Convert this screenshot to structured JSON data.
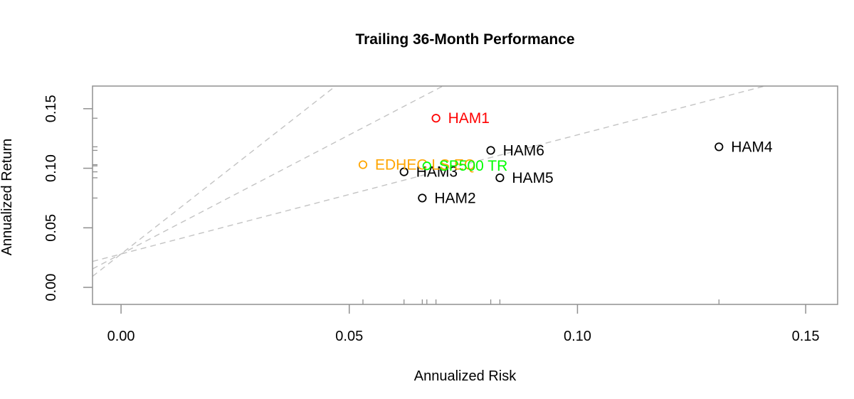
{
  "title": "Trailing 36-Month Performance",
  "x_axis_label": "Annualized Risk",
  "y_axis_label": "Annualized Return",
  "chart_data": {
    "type": "scatter",
    "title": "Trailing 36-Month Performance",
    "xlabel": "Annualized Risk",
    "ylabel": "Annualized Return",
    "xlim": [
      -0.00625,
      0.157
    ],
    "ylim": [
      -0.0143,
      0.169
    ],
    "x_ticks": [
      0,
      0.05,
      0.1,
      0.15
    ],
    "x_tick_labels": [
      "0.00",
      "0.05",
      "0.10",
      "0.15"
    ],
    "y_ticks": [
      0,
      0.05,
      0.1,
      0.15
    ],
    "y_tick_labels": [
      "0.00",
      "0.05",
      "0.10",
      "0.15"
    ],
    "grid": false,
    "legend": "none",
    "points": [
      {
        "name": "HAM1",
        "risk": 0.069,
        "return": 0.142,
        "color": "#ff0000"
      },
      {
        "name": "HAM2",
        "risk": 0.066,
        "return": 0.075,
        "color": "#000000"
      },
      {
        "name": "HAM3",
        "risk": 0.062,
        "return": 0.097,
        "color": "#000000"
      },
      {
        "name": "HAM4",
        "risk": 0.131,
        "return": 0.118,
        "color": "#000000"
      },
      {
        "name": "HAM5",
        "risk": 0.083,
        "return": 0.092,
        "color": "#000000"
      },
      {
        "name": "HAM6",
        "risk": 0.081,
        "return": 0.115,
        "color": "#000000"
      },
      {
        "name": "EDHEC LS EQ",
        "risk": 0.053,
        "return": 0.103,
        "color": "#ffa500"
      },
      {
        "name": "SP500 TR",
        "risk": 0.067,
        "return": 0.102,
        "color": "#00ff00"
      }
    ],
    "sharpe_lines": {
      "risk_free_rate": 0.028,
      "ratios": [
        1,
        2,
        3
      ],
      "color": "#c3c3c3",
      "style": "dashed"
    },
    "rug_marks": true,
    "axis_color": "#909090",
    "text_color": "#000000",
    "marker": "open-circle"
  }
}
